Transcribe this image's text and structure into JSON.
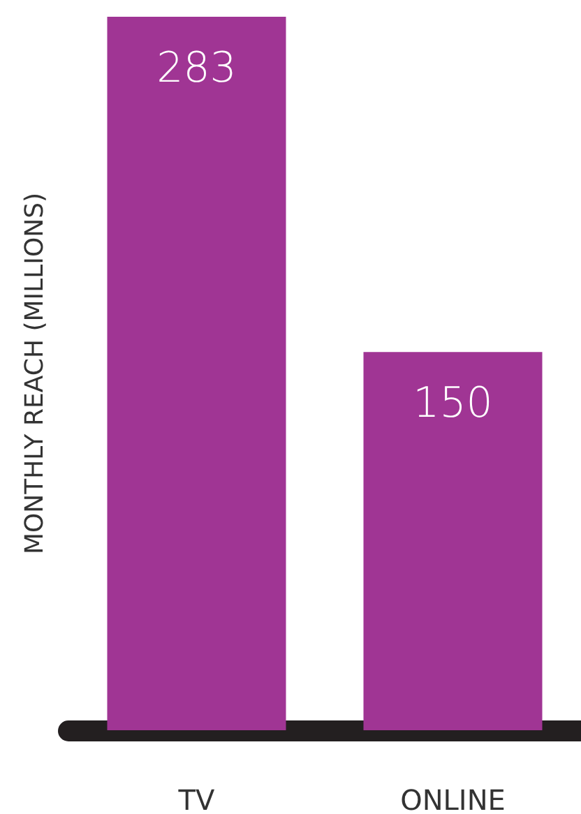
{
  "chart_data": {
    "type": "bar",
    "ylabel": "MONTHLY REACH (MILLIONS)",
    "categories": [
      "TV",
      "ONLINE"
    ],
    "values": [
      283,
      150
    ],
    "color": "#a03594",
    "data_labels": true
  }
}
